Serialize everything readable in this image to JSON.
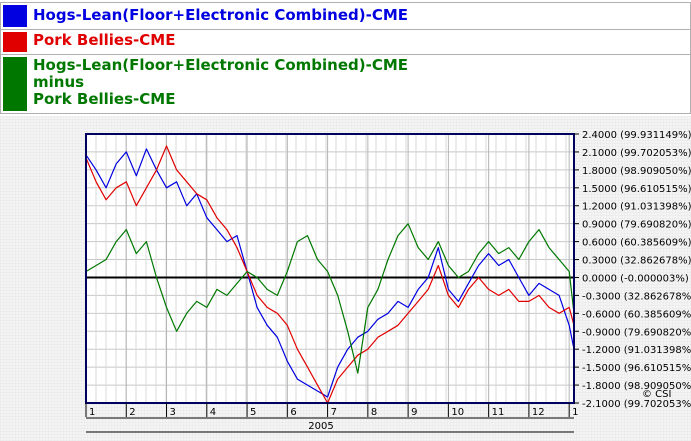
{
  "legend": [
    {
      "lines": [
        "Hogs-Lean(Floor+Electronic Combined)-CME"
      ],
      "color": "#0000e0"
    },
    {
      "lines": [
        "Pork Bellies-CME"
      ],
      "color": "#e00000"
    },
    {
      "lines": [
        "Hogs-Lean(Floor+Electronic Combined)-CME",
        "minus",
        "Pork Bellies-CME"
      ],
      "color": "#007800"
    }
  ],
  "year_label": "2005",
  "copyright": "© CSI",
  "chart_data": {
    "type": "line",
    "ylim": [
      -2.1,
      2.4
    ],
    "y_ticks": [
      {
        "value": 2.4,
        "label": "2.4000 (99.931149%)"
      },
      {
        "value": 2.1,
        "label": "2.1000 (99.702053%)"
      },
      {
        "value": 1.8,
        "label": "1.8000 (98.909050%)"
      },
      {
        "value": 1.5,
        "label": "1.5000 (96.610515%)"
      },
      {
        "value": 1.2,
        "label": "1.2000 (91.031398%)"
      },
      {
        "value": 0.9,
        "label": "0.9000 (79.690820%)"
      },
      {
        "value": 0.6,
        "label": "0.6000 (60.385609%)"
      },
      {
        "value": 0.3,
        "label": "0.3000 (32.862678%)"
      },
      {
        "value": 0.0,
        "label": "0.0000 (-0.000003%)"
      },
      {
        "value": -0.3,
        "label": "-0.3000 (32.862678%)"
      },
      {
        "value": -0.6,
        "label": "-0.6000 (60.385609%)"
      },
      {
        "value": -0.9,
        "label": "-0.9000 (79.690820%)"
      },
      {
        "value": -1.2,
        "label": "-1.2000 (91.031398%)"
      },
      {
        "value": -1.5,
        "label": "-1.5000 (96.610515%)"
      },
      {
        "value": -1.8,
        "label": "-1.8000 (98.909050%)"
      },
      {
        "value": -2.1,
        "label": "-2.1000 (99.702053%)"
      }
    ],
    "x_tick_labels": [
      "1",
      "2",
      "3",
      "4",
      "5",
      "6",
      "7",
      "8",
      "9",
      "10",
      "11",
      "12",
      "1"
    ],
    "series": [
      {
        "name": "Hogs-Lean(Floor+Electronic Combined)-CME",
        "color": "#0000e0",
        "x": [
          1.0,
          1.25,
          1.5,
          1.75,
          2.0,
          2.25,
          2.5,
          2.75,
          3.0,
          3.25,
          3.5,
          3.75,
          4.0,
          4.25,
          4.5,
          4.75,
          5.0,
          5.25,
          5.5,
          5.75,
          6.0,
          6.25,
          6.5,
          6.75,
          7.0,
          7.25,
          7.5,
          7.75,
          8.0,
          8.25,
          8.5,
          8.75,
          9.0,
          9.25,
          9.5,
          9.75,
          10.0,
          10.25,
          10.5,
          10.75,
          11.0,
          11.25,
          11.5,
          11.75,
          12.0,
          12.25,
          12.5,
          12.75,
          13.0,
          13.12
        ],
        "values": [
          2.05,
          1.8,
          1.5,
          1.9,
          2.1,
          1.7,
          2.15,
          1.8,
          1.5,
          1.6,
          1.2,
          1.4,
          1.0,
          0.8,
          0.6,
          0.7,
          0.1,
          -0.5,
          -0.8,
          -1.0,
          -1.4,
          -1.7,
          -1.8,
          -1.9,
          -2.0,
          -1.5,
          -1.2,
          -1.0,
          -0.9,
          -0.7,
          -0.6,
          -0.4,
          -0.5,
          -0.2,
          0.0,
          0.5,
          -0.2,
          -0.4,
          -0.1,
          0.2,
          0.4,
          0.2,
          0.3,
          0.0,
          -0.3,
          -0.1,
          -0.2,
          -0.3,
          -0.8,
          -1.2
        ]
      },
      {
        "name": "Pork Bellies-CME",
        "color": "#e00000",
        "x": [
          1.0,
          1.25,
          1.5,
          1.75,
          2.0,
          2.25,
          2.5,
          2.75,
          3.0,
          3.25,
          3.5,
          3.75,
          4.0,
          4.25,
          4.5,
          4.75,
          5.0,
          5.25,
          5.5,
          5.75,
          6.0,
          6.25,
          6.5,
          6.75,
          7.0,
          7.25,
          7.5,
          7.75,
          8.0,
          8.25,
          8.5,
          8.75,
          9.0,
          9.25,
          9.5,
          9.75,
          10.0,
          10.25,
          10.5,
          10.75,
          11.0,
          11.25,
          11.5,
          11.75,
          12.0,
          12.25,
          12.5,
          12.75,
          13.0,
          13.12
        ],
        "values": [
          2.0,
          1.6,
          1.3,
          1.5,
          1.6,
          1.2,
          1.5,
          1.8,
          2.2,
          1.8,
          1.6,
          1.4,
          1.3,
          1.0,
          0.8,
          0.5,
          0.1,
          -0.3,
          -0.5,
          -0.6,
          -0.8,
          -1.2,
          -1.5,
          -1.8,
          -2.1,
          -1.7,
          -1.5,
          -1.3,
          -1.2,
          -1.0,
          -0.9,
          -0.8,
          -0.6,
          -0.4,
          -0.2,
          0.2,
          -0.3,
          -0.5,
          -0.2,
          0.0,
          -0.2,
          -0.3,
          -0.2,
          -0.4,
          -0.4,
          -0.3,
          -0.5,
          -0.6,
          -0.5,
          -0.8
        ]
      },
      {
        "name": "Hogs-Lean(Floor+Electronic Combined)-CME minus Pork Bellies-CME",
        "color": "#007800",
        "x": [
          1.0,
          1.25,
          1.5,
          1.75,
          2.0,
          2.25,
          2.5,
          2.75,
          3.0,
          3.25,
          3.5,
          3.75,
          4.0,
          4.25,
          4.5,
          4.75,
          5.0,
          5.25,
          5.5,
          5.75,
          6.0,
          6.25,
          6.5,
          6.75,
          7.0,
          7.25,
          7.5,
          7.75,
          8.0,
          8.25,
          8.5,
          8.75,
          9.0,
          9.25,
          9.5,
          9.75,
          10.0,
          10.25,
          10.5,
          10.75,
          11.0,
          11.25,
          11.5,
          11.75,
          12.0,
          12.25,
          12.5,
          12.75,
          13.0,
          13.12
        ],
        "values": [
          0.1,
          0.2,
          0.3,
          0.6,
          0.8,
          0.4,
          0.6,
          0.0,
          -0.5,
          -0.9,
          -0.6,
          -0.4,
          -0.5,
          -0.2,
          -0.3,
          -0.1,
          0.1,
          0.0,
          -0.2,
          -0.3,
          0.1,
          0.6,
          0.7,
          0.3,
          0.1,
          -0.3,
          -0.9,
          -1.6,
          -0.5,
          -0.2,
          0.3,
          0.7,
          0.9,
          0.5,
          0.3,
          0.6,
          0.2,
          0.0,
          0.1,
          0.4,
          0.6,
          0.4,
          0.5,
          0.3,
          0.6,
          0.8,
          0.5,
          0.3,
          0.1,
          -0.6
        ]
      }
    ]
  }
}
